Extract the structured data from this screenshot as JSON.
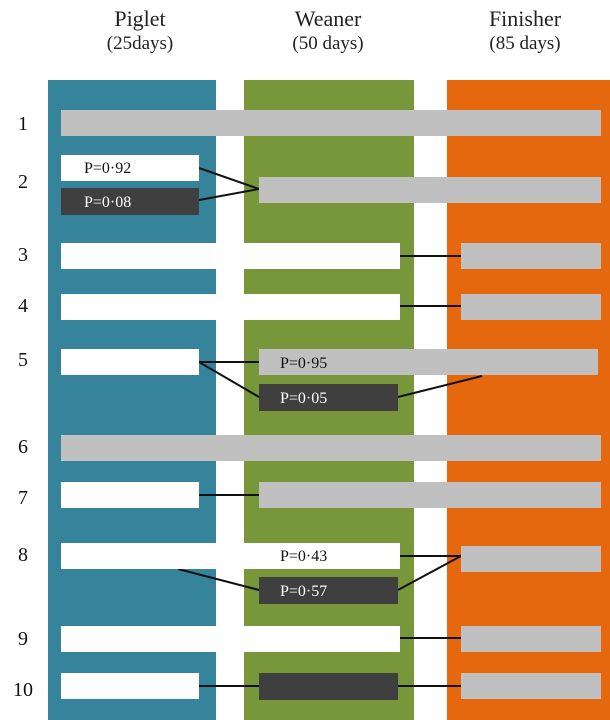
{
  "columns": [
    {
      "name": "Piglet",
      "age": "(25days)",
      "color": "#35849b"
    },
    {
      "name": "Weaner",
      "age": "(50 days)",
      "color": "#78973b"
    },
    {
      "name": "Finisher",
      "age": "(85 days)",
      "color": "#e5680f"
    }
  ],
  "bar_colors": {
    "white": "#ffffff",
    "grey": "#c0c0c0",
    "dark": "#3f3f3f"
  },
  "rows": [
    {
      "num": "1"
    },
    {
      "num": "2",
      "labels": {
        "piglet_top": "P=0·92",
        "piglet_bottom": "P=0·08"
      }
    },
    {
      "num": "3"
    },
    {
      "num": "4"
    },
    {
      "num": "5",
      "labels": {
        "weaner_top": "P=0·95",
        "weaner_bottom": "P=0·05"
      }
    },
    {
      "num": "6"
    },
    {
      "num": "7"
    },
    {
      "num": "8",
      "labels": {
        "weaner_top": "P=0·43",
        "weaner_bottom": "P=0·57"
      }
    },
    {
      "num": "9"
    },
    {
      "num": "10"
    }
  ]
}
